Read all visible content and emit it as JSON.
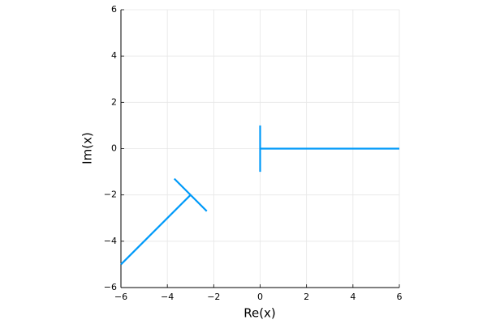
{
  "chart_data": {
    "type": "line",
    "xlabel": "Re(x)",
    "ylabel": "Im(x)",
    "x": [
      -6,
      -3,
      null,
      -3.7,
      -2.3,
      null,
      0,
      0,
      null,
      0,
      6
    ],
    "series": [
      {
        "color": "#009af9",
        "values": [
          -5,
          -2,
          null,
          -1.3,
          -2.7,
          null,
          1,
          -1,
          null,
          0,
          0
        ]
      }
    ],
    "xlim": [
      -6,
      6
    ],
    "ylim": [
      -6,
      6
    ],
    "xticks": [
      {
        "value": -6,
        "label": "−6"
      },
      {
        "value": -4,
        "label": "−4"
      },
      {
        "value": -2,
        "label": "−2"
      },
      0,
      2,
      4,
      6
    ],
    "yticks": [
      {
        "value": -6,
        "label": "−6"
      },
      {
        "value": -4,
        "label": "−4"
      },
      {
        "value": -2,
        "label": "−2"
      },
      0,
      2,
      4,
      6
    ],
    "grid": true
  }
}
